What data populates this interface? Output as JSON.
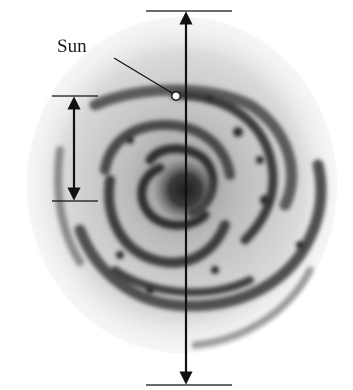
{
  "diagram": {
    "sun_label": "Sun"
  }
}
